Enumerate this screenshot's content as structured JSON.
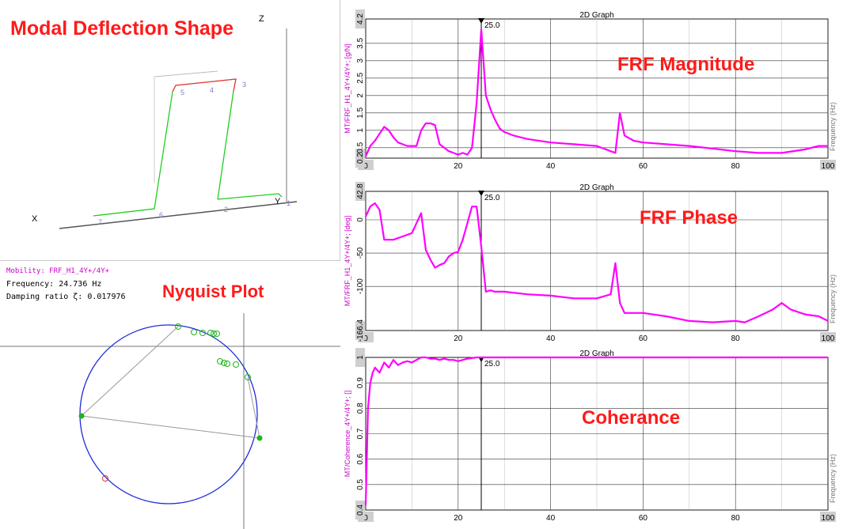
{
  "labels": {
    "modal": "Modal Deflection Shape",
    "nyquist": "Nyquist Plot",
    "magnitude": "FRF Magnitude",
    "phase": "FRF Phase",
    "coherence": "Coherance"
  },
  "deflection": {
    "axis_x": "X",
    "axis_y": "Y",
    "axis_z": "Z",
    "node_labels": [
      "1",
      "2",
      "3",
      "4",
      "5",
      "6",
      "7"
    ]
  },
  "nyquist_info": {
    "mobility": "Mobility: FRF_H1_4Y+/4Y+",
    "frequency": "Frequency: 24.736 Hz",
    "damping": "Damping ratio ζ: 0.017976"
  },
  "colors": {
    "curve": "#ff00ff",
    "label_red": "#ff1a1a",
    "circle": "#1f2ed6",
    "green_points": "#1db51d",
    "deflect_red": "#e03030",
    "deflect_green": "#22cc22"
  },
  "chart_data": [
    {
      "type": "line",
      "title": "2D Graph",
      "ylabel": "MT/FRF_H1_4Y+/4Y+; [g/N]",
      "xlabel": "Frequency (Hz)",
      "xlim": [
        0,
        100
      ],
      "ylim": [
        0.2,
        4.2
      ],
      "yticks": [
        "0.2",
        "0.5",
        "1",
        "1.5",
        "2",
        "2.5",
        "3",
        "3.5",
        "4.2"
      ],
      "xticks": [
        "0",
        "20",
        "40",
        "60",
        "80",
        "100"
      ],
      "cursor_label": "25.0",
      "cursor_x": 25,
      "x": [
        0,
        1,
        2,
        3,
        4,
        5,
        6,
        7,
        9,
        11,
        12,
        13,
        14,
        15,
        16,
        18,
        19,
        20,
        21,
        22,
        23,
        24,
        25,
        26,
        27,
        28,
        29,
        30,
        32,
        35,
        40,
        45,
        50,
        53,
        54,
        55,
        56,
        58,
        60,
        65,
        70,
        80,
        85,
        90,
        95,
        98,
        100
      ],
      "values": [
        0.25,
        0.55,
        0.7,
        0.9,
        1.1,
        1.0,
        0.8,
        0.65,
        0.55,
        0.55,
        1.0,
        1.2,
        1.2,
        1.15,
        0.6,
        0.4,
        0.35,
        0.3,
        0.35,
        0.3,
        0.5,
        1.8,
        3.9,
        2.0,
        1.6,
        1.3,
        1.05,
        0.95,
        0.85,
        0.75,
        0.65,
        0.6,
        0.55,
        0.4,
        0.35,
        1.5,
        0.85,
        0.7,
        0.65,
        0.6,
        0.55,
        0.4,
        0.35,
        0.35,
        0.45,
        0.55,
        0.55
      ]
    },
    {
      "type": "line",
      "title": "2D Graph",
      "ylabel": "MT/FRF_H1_4Y+/4Y+; [deg]",
      "xlabel": "Frequency (Hz)",
      "xlim": [
        0,
        100
      ],
      "ylim": [
        -166.4,
        42.8
      ],
      "yticks": [
        "-166.4",
        "-100",
        "-50",
        "0",
        "42.8"
      ],
      "xticks": [
        "0",
        "20",
        "40",
        "60",
        "80",
        "100"
      ],
      "cursor_label": "25.0",
      "cursor_x": 25,
      "x": [
        0,
        1,
        2,
        3,
        4,
        6,
        8,
        10,
        11,
        12,
        13,
        14,
        15,
        16,
        17,
        18,
        19,
        20,
        21,
        22,
        23,
        24,
        25,
        26,
        27,
        28,
        30,
        35,
        40,
        45,
        50,
        53,
        54,
        55,
        56,
        58,
        60,
        65,
        70,
        75,
        80,
        82,
        85,
        88,
        90,
        92,
        95,
        98,
        100
      ],
      "values": [
        5,
        20,
        25,
        15,
        -30,
        -30,
        -25,
        -20,
        -5,
        10,
        -45,
        -60,
        -72,
        -68,
        -65,
        -55,
        -50,
        -48,
        -30,
        -5,
        20,
        20,
        -40,
        -108,
        -106,
        -108,
        -108,
        -112,
        -114,
        -118,
        -118,
        -112,
        -65,
        -125,
        -140,
        -140,
        -140,
        -145,
        -152,
        -154,
        -152,
        -154,
        -145,
        -135,
        -125,
        -135,
        -142,
        -145,
        -152
      ]
    },
    {
      "type": "line",
      "title": "2D Graph",
      "ylabel": "MT/Coherence_4Y+/4Y+; []",
      "xlabel": "Frequency (Hz)",
      "xlim": [
        0,
        100
      ],
      "ylim": [
        0.4,
        1.0
      ],
      "yticks": [
        "0.4",
        "0.5",
        "0.6",
        "0.7",
        "0.8",
        "0.9",
        "1"
      ],
      "xticks": [
        "0",
        "20",
        "40",
        "60",
        "80",
        "100"
      ],
      "cursor_label": "25.0",
      "cursor_x": 25,
      "x": [
        0,
        0.5,
        1,
        1.5,
        2,
        3,
        4,
        5,
        6,
        7,
        8,
        9,
        10,
        11,
        12,
        13,
        14,
        15,
        16,
        17,
        18,
        19,
        20,
        22,
        24,
        26,
        30,
        40,
        50,
        60,
        70,
        80,
        90,
        100
      ],
      "values": [
        0.42,
        0.8,
        0.9,
        0.94,
        0.96,
        0.94,
        0.98,
        0.96,
        0.99,
        0.97,
        0.98,
        0.985,
        0.98,
        0.99,
        1.0,
        1.0,
        0.995,
        0.995,
        0.99,
        0.995,
        0.99,
        0.99,
        0.985,
        0.995,
        1.0,
        1.0,
        1.0,
        1.0,
        1.0,
        1.0,
        1.0,
        1.0,
        1.0,
        1.0
      ]
    }
  ]
}
